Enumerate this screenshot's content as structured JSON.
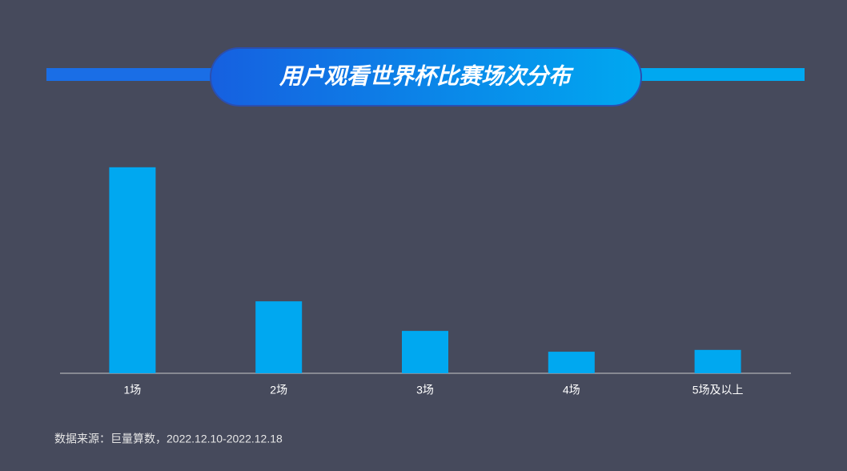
{
  "chart_data": {
    "type": "bar",
    "title": "用户观看世界杯比赛场次分布",
    "categories": [
      "1场",
      "2场",
      "3场",
      "4场",
      "5场及以上"
    ],
    "values": [
      56.4,
      19.7,
      11.6,
      5.9,
      6.4
    ],
    "color": "#00a8f0",
    "source": "数据来源：巨量算数，2022.12.10-2022.12.18"
  }
}
